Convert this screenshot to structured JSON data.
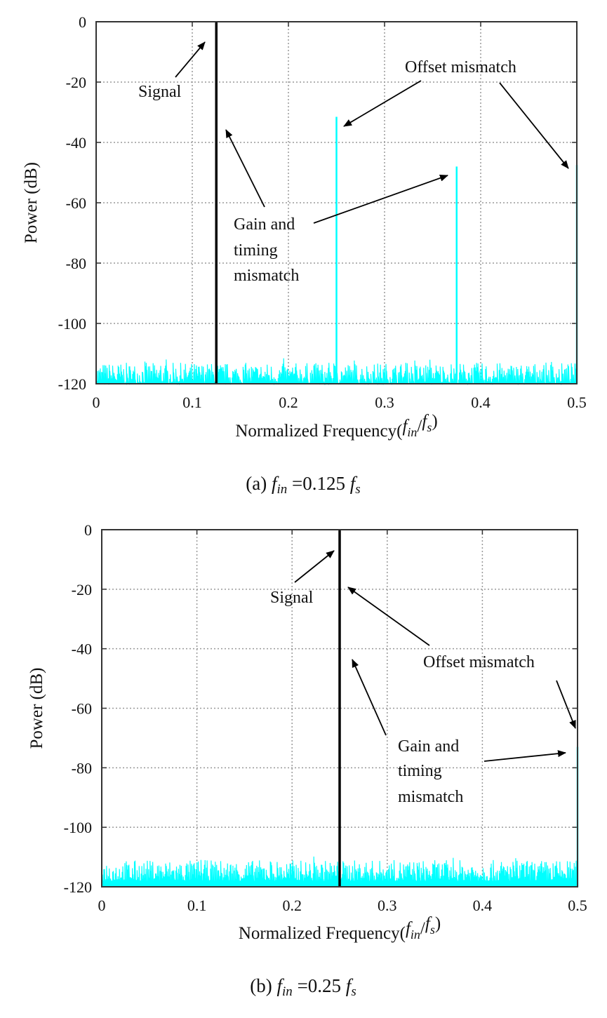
{
  "chart_data": [
    {
      "type": "line",
      "caption": {
        "prefix": "(a) ",
        "f": "f",
        "in": "in",
        "eq": " =0.125 ",
        "fs": "f",
        "s": "s"
      },
      "xlabel": {
        "text": "Normalized Frequency(",
        "f1": "f",
        "sub1": "in",
        "slash": "/",
        "f2": "f",
        "sub2": "s",
        "close": ")"
      },
      "ylabel": "Power (dB)",
      "xlim": [
        0,
        0.5
      ],
      "ylim": [
        -120,
        0
      ],
      "xticks": [
        "0",
        "0.1",
        "0.2",
        "0.3",
        "0.4",
        "0.5"
      ],
      "yticks": [
        "0",
        "-20",
        "-40",
        "-60",
        "-80",
        "-100",
        "-120"
      ],
      "grid": true,
      "signal": {
        "x": 0.125,
        "y": 0,
        "color": "#000000"
      },
      "spurs": [
        {
          "x": 0.25,
          "y": -31.5
        },
        {
          "x": 0.375,
          "y": -48
        },
        {
          "x": 0.5,
          "y": -47.5
        }
      ],
      "noise_floor": {
        "min": -120,
        "max": -113,
        "color": "#00FFFF"
      },
      "annotations": [
        "Signal",
        "Offset mismatch",
        "Gain and",
        "timing",
        "mismatch"
      ]
    },
    {
      "type": "line",
      "caption": {
        "prefix": "(b) ",
        "f": "f",
        "in": "in",
        "eq": " =0.25 ",
        "fs": "f",
        "s": "s"
      },
      "xlabel": {
        "text": "Normalized Frequency(",
        "f1": "f",
        "sub1": "in",
        "slash": "/",
        "f2": "f",
        "sub2": "s",
        "close": ")"
      },
      "ylabel": "Power (dB)",
      "xlim": [
        0,
        0.5
      ],
      "ylim": [
        -120,
        0
      ],
      "xticks": [
        "0",
        "0.1",
        "0.2",
        "0.3",
        "0.4",
        "0.5"
      ],
      "yticks": [
        "0",
        "-20",
        "-40",
        "-60",
        "-80",
        "-100",
        "-120"
      ],
      "grid": true,
      "signal": {
        "x": 0.25,
        "y": 0,
        "color": "#000000"
      },
      "spurs": [
        {
          "x": 0.5,
          "y": -73
        }
      ],
      "noise_floor": {
        "min": -118,
        "max": -111,
        "color": "#00FFFF"
      },
      "annotations": [
        "Signal",
        "Offset mismatch",
        "Gain and",
        "timing",
        "mismatch"
      ]
    }
  ]
}
